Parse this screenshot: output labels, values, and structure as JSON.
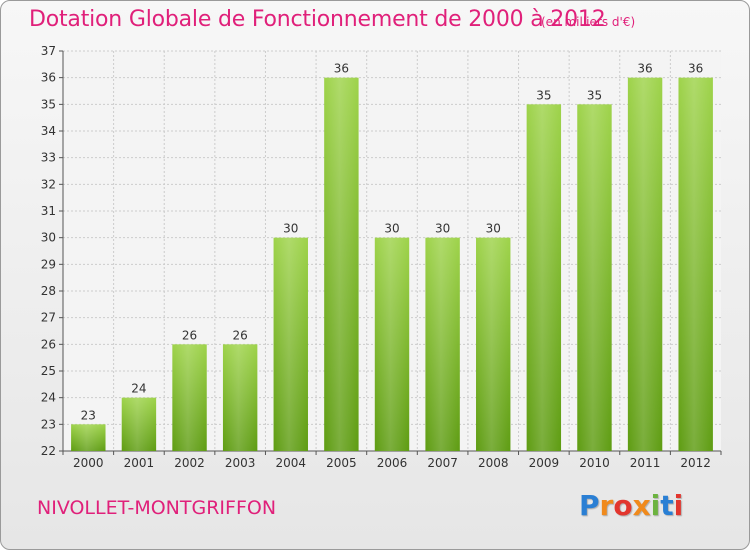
{
  "header": {
    "title": "Dotation Globale de Fonctionnement de 2000 à 2012",
    "subtitle": "(en milliers d'€)"
  },
  "footer": {
    "commune": "NIVOLLET-MONTGRIFFON",
    "logo": {
      "letters": [
        "P",
        "r",
        "o",
        "x",
        "i",
        "t",
        "i"
      ],
      "colors": [
        "#2a7fd4",
        "#f08a1c",
        "#e2362e",
        "#f08a1c",
        "#6cb33f",
        "#2a7fd4",
        "#e2362e"
      ]
    }
  },
  "colors": {
    "bar_light": "#9ed34a",
    "bar_dark": "#5e9c12",
    "accent": "#e0207a",
    "grid": "#cccccc"
  },
  "chart_data": {
    "type": "bar",
    "categories": [
      "2000",
      "2001",
      "2002",
      "2003",
      "2004",
      "2005",
      "2006",
      "2007",
      "2008",
      "2009",
      "2010",
      "2011",
      "2012"
    ],
    "values": [
      23,
      24,
      26,
      26,
      30,
      36,
      30,
      30,
      30,
      35,
      35,
      36,
      36
    ],
    "data_labels": [
      "23",
      "24",
      "26",
      "26",
      "30",
      "36",
      "30",
      "30",
      "30",
      "35",
      "35",
      "36",
      "36"
    ],
    "y_ticks": [
      "22",
      "23",
      "24",
      "25",
      "26",
      "27",
      "28",
      "29",
      "30",
      "31",
      "32",
      "33",
      "34",
      "35",
      "36",
      "37"
    ],
    "ylim": [
      22,
      37
    ],
    "grid": true,
    "legend": "none"
  }
}
